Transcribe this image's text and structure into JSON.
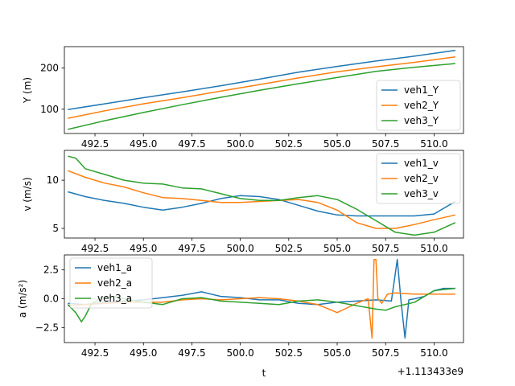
{
  "figure": {
    "xlabel": "t",
    "offset_text": "+1.113433e9",
    "xlim": [
      490.92,
      511.52
    ],
    "xticks": [
      492.5,
      495.0,
      497.5,
      500.0,
      502.5,
      505.0,
      507.5,
      510.0
    ],
    "xtick_labels": [
      "492.5",
      "495.0",
      "497.5",
      "500.0",
      "502.5",
      "505.0",
      "507.5",
      "510.0"
    ]
  },
  "colors": {
    "veh1": "#1f77b4",
    "veh2": "#ff7f0e",
    "veh3": "#2ca02c"
  },
  "chart_data": [
    {
      "type": "line",
      "ylabel": "Y (m)",
      "ylim": [
        41,
        252
      ],
      "yticks": [
        100,
        200
      ],
      "ytick_labels": [
        "100",
        "200"
      ],
      "legend_position": "lower-right",
      "series": [
        {
          "name": "veh1_Y",
          "x": [
            491.1,
            493,
            495,
            497,
            499,
            501,
            503,
            505,
            507,
            509,
            511.1
          ],
          "values": [
            99,
            113,
            128,
            142,
            157,
            173,
            190,
            204,
            217,
            229,
            243
          ]
        },
        {
          "name": "veh2_Y",
          "x": [
            491.1,
            493,
            495,
            497,
            499,
            501,
            503,
            505,
            507,
            509,
            511.1
          ],
          "values": [
            78,
            96,
            113,
            128,
            144,
            160,
            176,
            191,
            203,
            214,
            227
          ]
        },
        {
          "name": "veh3_Y",
          "x": [
            491.1,
            493,
            495,
            497,
            499,
            501,
            503,
            505,
            507,
            509,
            511.1
          ],
          "values": [
            51,
            72,
            92,
            111,
            129,
            146,
            162,
            177,
            192,
            202,
            211
          ]
        }
      ]
    },
    {
      "type": "line",
      "ylabel": "v (m/s)",
      "ylim": [
        4.0,
        13.1
      ],
      "yticks": [
        5,
        10
      ],
      "ytick_labels": [
        "5",
        "10"
      ],
      "legend_position": "upper-right",
      "series": [
        {
          "name": "veh1_v",
          "x": [
            491.1,
            492,
            493,
            494,
            495,
            496,
            497,
            498,
            499,
            500,
            501,
            502,
            503,
            504,
            505,
            506,
            507,
            508,
            509,
            510,
            511.1
          ],
          "values": [
            8.8,
            8.3,
            7.9,
            7.6,
            7.2,
            6.9,
            7.2,
            7.6,
            8.1,
            8.4,
            8.3,
            8.0,
            7.4,
            6.8,
            6.4,
            6.3,
            6.3,
            6.3,
            6.3,
            6.5,
            7.8
          ]
        },
        {
          "name": "veh2_v",
          "x": [
            491.1,
            492,
            493,
            494,
            495,
            496,
            497,
            498,
            499,
            500,
            501,
            502,
            503,
            504,
            505,
            506,
            507,
            508,
            509,
            510,
            511.1
          ],
          "values": [
            11.0,
            10.3,
            9.7,
            9.3,
            8.7,
            8.2,
            8.1,
            7.9,
            7.7,
            7.7,
            7.8,
            7.9,
            8.0,
            7.7,
            6.9,
            5.6,
            5.0,
            5.0,
            5.4,
            5.9,
            6.4
          ]
        },
        {
          "name": "veh3_v",
          "x": [
            491.1,
            491.5,
            492,
            493,
            494,
            495,
            496,
            497,
            498,
            499,
            500,
            501,
            502,
            503,
            504,
            505,
            506,
            507,
            508,
            509,
            510,
            511.1
          ],
          "values": [
            12.5,
            12.3,
            11.2,
            10.6,
            10.0,
            9.7,
            9.6,
            9.2,
            9.1,
            8.6,
            8.1,
            7.9,
            7.9,
            8.2,
            8.4,
            8.0,
            7.0,
            5.8,
            4.6,
            4.3,
            4.6,
            5.6
          ]
        }
      ]
    },
    {
      "type": "line",
      "ylabel": "a (m/s²)",
      "ylim": [
        -3.8,
        3.8
      ],
      "yticks": [
        -2.5,
        0.0,
        2.5
      ],
      "ytick_labels": [
        "−2.5",
        "0.0",
        "2.5"
      ],
      "legend_position": "upper-left",
      "series": [
        {
          "name": "veh1_a",
          "x": [
            491.1,
            492,
            493,
            494,
            495,
            495.5,
            496,
            497,
            498,
            499,
            500,
            501,
            502,
            503,
            504,
            505,
            506,
            507,
            507.8,
            508.1,
            508.3,
            508.5,
            508.7,
            509,
            509.5,
            510,
            510.5,
            511.1
          ],
          "values": [
            -0.4,
            -0.5,
            -0.3,
            -0.2,
            -0.1,
            0.0,
            0.1,
            0.3,
            0.6,
            0.2,
            0.1,
            -0.1,
            -0.1,
            -0.4,
            -0.5,
            -0.3,
            -0.2,
            -0.1,
            -0.2,
            3.4,
            -0.3,
            -3.4,
            -0.1,
            0.0,
            0.2,
            0.7,
            0.9,
            0.9
          ]
        },
        {
          "name": "veh2_a",
          "x": [
            491.1,
            492,
            493,
            494,
            495,
            496,
            497,
            498,
            499,
            500,
            501,
            502,
            503,
            504,
            505,
            505.5,
            506,
            506.6,
            506.8,
            506.9,
            507.0,
            507.1,
            507.3,
            507.6,
            508,
            509,
            510,
            511.1
          ],
          "values": [
            -0.6,
            -0.5,
            -0.4,
            -0.3,
            -0.3,
            -0.3,
            -0.1,
            0.0,
            -0.1,
            0.0,
            0.1,
            0.0,
            -0.2,
            -0.5,
            -1.2,
            -0.8,
            -0.4,
            0.0,
            -3.4,
            3.4,
            3.4,
            0.0,
            -0.4,
            0.4,
            0.5,
            0.4,
            0.4,
            0.4
          ]
        },
        {
          "name": "veh3_a",
          "x": [
            491.1,
            491.5,
            491.8,
            492.0,
            492.3,
            492.8,
            493.5,
            494,
            495,
            496,
            497,
            498,
            499,
            500,
            501,
            502,
            503,
            504,
            505,
            506,
            507,
            507.5,
            508,
            508.5,
            509,
            509.5,
            510,
            510.5,
            511.1
          ],
          "values": [
            -0.5,
            -1.2,
            -2.0,
            -1.5,
            -0.5,
            0.1,
            0.2,
            0.0,
            -0.3,
            -0.5,
            0.0,
            0.1,
            -0.2,
            -0.3,
            -0.4,
            -0.5,
            -0.2,
            -0.1,
            -0.3,
            -0.6,
            -0.9,
            -1.0,
            -0.7,
            -0.5,
            -0.3,
            0.2,
            0.7,
            0.8,
            0.9
          ]
        }
      ]
    }
  ]
}
